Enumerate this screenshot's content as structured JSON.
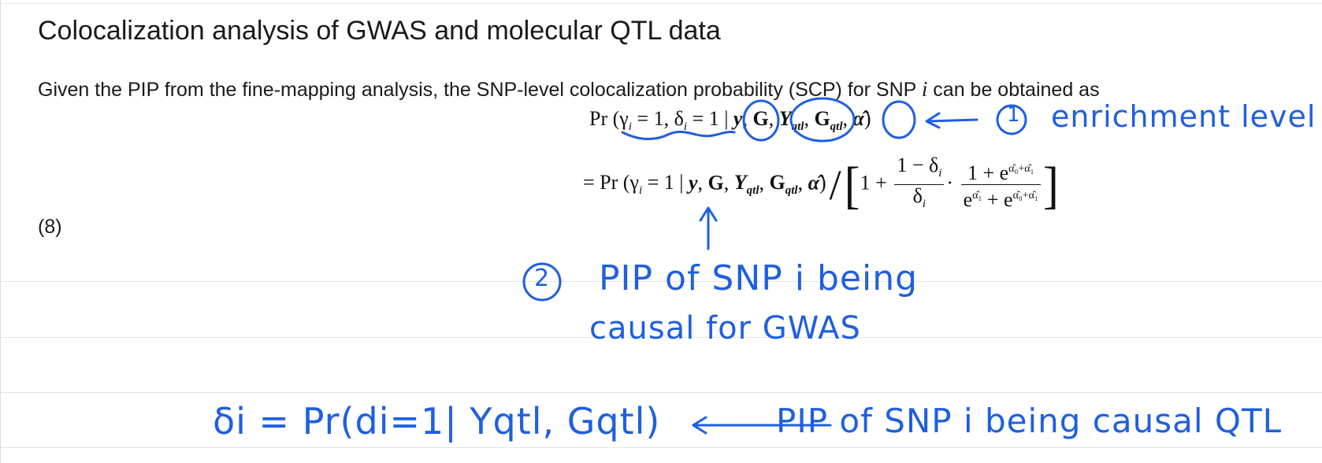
{
  "title": "Colocalization analysis of GWAS and molecular QTL data",
  "paragraph": {
    "before": "Given the PIP from the fine-mapping analysis, the SNP-level colocalization probability (SCP) for SNP ",
    "var": "i",
    "after": " can be obtained as"
  },
  "equation_number": "(8)",
  "equation": {
    "line1": {
      "pr": "Pr",
      "args": "(γ",
      "args_sub": "i",
      "args_mid": " = 1, δ",
      "args_sub2": "i",
      "args_end": " = 1 | ",
      "cond_y": "y",
      "cond_G": "G",
      "cond_Y": "Y",
      "cond_Y_sub": "qtl",
      "cond_Gq": "G",
      "cond_Gq_sub": "qtl",
      "cond_alpha": "α̂",
      "close": ")"
    },
    "line2": {
      "lead": "= Pr (γ",
      "lead_sub": "i",
      "lead_rest": " = 1 | ",
      "cond_y": "y",
      "cond_G": "G",
      "cond_Y": "Y",
      "cond_Y_sub": "qtl",
      "cond_Gq": "G",
      "cond_Gq_sub": "qtl",
      "cond_alpha": "α̂",
      "close": ")",
      "one_plus": "1 +",
      "frac1_num": "1 − δ",
      "frac1_num_sub": "i",
      "frac1_den": "δ",
      "frac1_den_sub": "i",
      "dot": "·",
      "frac2_num": "1 + e",
      "frac2_num_sup": "α̂₀+α̂₁",
      "frac2_den_a": "e",
      "frac2_den_a_sup": "α̂₁",
      "frac2_den_b": " + e",
      "frac2_den_b_sup": "α̂₀+α̂₁"
    }
  },
  "annotations": {
    "note1_number": "1",
    "note1_text": "enrichment level",
    "note2_number": "2",
    "note2_line1": "PIP of SNP i being",
    "note2_line2": "causal for GWAS",
    "note3_text": "δi = Pr(di=1| Yqtl, Gqtl)",
    "note3_arrow": "←",
    "note3_comment": "PIP of SNP i being causal QTL"
  },
  "colors": {
    "ink": "#1f5fe0",
    "text": "#1a1a1a",
    "rule": "#e4e4e4"
  }
}
